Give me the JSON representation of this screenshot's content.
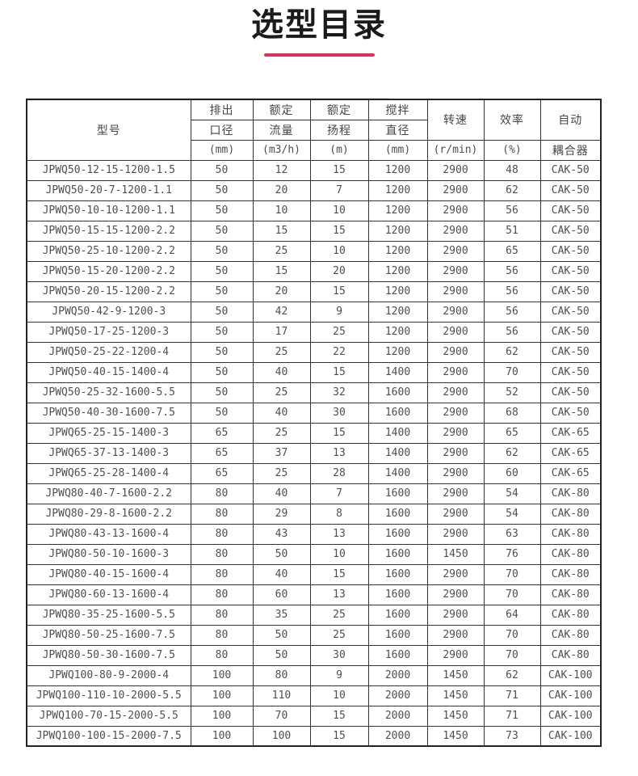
{
  "page": {
    "title": "选型目录",
    "accent_color": "#dd3257"
  },
  "table": {
    "header": {
      "model": "型号",
      "col_groups": [
        {
          "line1": "排出",
          "line2": "口径",
          "unit": "(mm)"
        },
        {
          "line1": "额定",
          "line2": "流量",
          "unit": "(m3/h)"
        },
        {
          "line1": "额定",
          "line2": "扬程",
          "unit": "(m)"
        },
        {
          "line1": "搅拌",
          "line2": "直径",
          "unit": "(mm)"
        }
      ],
      "speed": {
        "label": "转速",
        "unit": "(r/min)"
      },
      "efficiency": {
        "label": "效率",
        "unit": "(%)"
      },
      "coupler": {
        "line1": "自动",
        "line2": "耦合器"
      }
    },
    "columns_semantic": [
      "model",
      "outlet-diameter-mm",
      "rated-flow-m3h",
      "rated-head-m",
      "mixing-diameter-mm",
      "speed-rmin",
      "efficiency-pct",
      "auto-coupler"
    ],
    "rows": [
      [
        "JPWQ50-12-15-1200-1.5",
        "50",
        "12",
        "15",
        "1200",
        "2900",
        "48",
        "CAK-50"
      ],
      [
        "JPWQ50-20-7-1200-1.1",
        "50",
        "20",
        "7",
        "1200",
        "2900",
        "62",
        "CAK-50"
      ],
      [
        "JPWQ50-10-10-1200-1.1",
        "50",
        "10",
        "10",
        "1200",
        "2900",
        "56",
        "CAK-50"
      ],
      [
        "JPWQ50-15-15-1200-2.2",
        "50",
        "15",
        "15",
        "1200",
        "2900",
        "51",
        "CAK-50"
      ],
      [
        "JPWQ50-25-10-1200-2.2",
        "50",
        "25",
        "10",
        "1200",
        "2900",
        "65",
        "CAK-50"
      ],
      [
        "JPWQ50-15-20-1200-2.2",
        "50",
        "15",
        "20",
        "1200",
        "2900",
        "56",
        "CAK-50"
      ],
      [
        "JPWQ50-20-15-1200-2.2",
        "50",
        "20",
        "15",
        "1200",
        "2900",
        "56",
        "CAK-50"
      ],
      [
        "JPWQ50-42-9-1200-3",
        "50",
        "42",
        "9",
        "1200",
        "2900",
        "56",
        "CAK-50"
      ],
      [
        "JPWQ50-17-25-1200-3",
        "50",
        "17",
        "25",
        "1200",
        "2900",
        "56",
        "CAK-50"
      ],
      [
        "JPWQ50-25-22-1200-4",
        "50",
        "25",
        "22",
        "1200",
        "2900",
        "62",
        "CAK-50"
      ],
      [
        "JPWQ50-40-15-1400-4",
        "50",
        "40",
        "15",
        "1400",
        "2900",
        "70",
        "CAK-50"
      ],
      [
        "JPWQ50-25-32-1600-5.5",
        "50",
        "25",
        "32",
        "1600",
        "2900",
        "52",
        "CAK-50"
      ],
      [
        "JPWQ50-40-30-1600-7.5",
        "50",
        "40",
        "30",
        "1600",
        "2900",
        "68",
        "CAK-50"
      ],
      [
        "JPWQ65-25-15-1400-3",
        "65",
        "25",
        "15",
        "1400",
        "2900",
        "65",
        "CAK-65"
      ],
      [
        "JPWQ65-37-13-1400-3",
        "65",
        "37",
        "13",
        "1400",
        "2900",
        "62",
        "CAK-65"
      ],
      [
        "JPWQ65-25-28-1400-4",
        "65",
        "25",
        "28",
        "1400",
        "2900",
        "60",
        "CAK-65"
      ],
      [
        "JPWQ80-40-7-1600-2.2",
        "80",
        "40",
        "7",
        "1600",
        "2900",
        "54",
        "CAK-80"
      ],
      [
        "JPWQ80-29-8-1600-2.2",
        "80",
        "29",
        "8",
        "1600",
        "2900",
        "54",
        "CAK-80"
      ],
      [
        "JPWQ80-43-13-1600-4",
        "80",
        "43",
        "13",
        "1600",
        "2900",
        "63",
        "CAK-80"
      ],
      [
        "JPWQ80-50-10-1600-3",
        "80",
        "50",
        "10",
        "1600",
        "1450",
        "76",
        "CAK-80"
      ],
      [
        "JPWQ80-40-15-1600-4",
        "80",
        "40",
        "15",
        "1600",
        "2900",
        "70",
        "CAK-80"
      ],
      [
        "JPWQ80-60-13-1600-4",
        "80",
        "60",
        "13",
        "1600",
        "2900",
        "70",
        "CAK-80"
      ],
      [
        "JPWQ80-35-25-1600-5.5",
        "80",
        "35",
        "25",
        "1600",
        "2900",
        "64",
        "CAK-80"
      ],
      [
        "JPWQ80-50-25-1600-7.5",
        "80",
        "50",
        "25",
        "1600",
        "2900",
        "70",
        "CAK-80"
      ],
      [
        "JPWQ80-50-30-1600-7.5",
        "80",
        "50",
        "30",
        "1600",
        "2900",
        "70",
        "CAK-80"
      ],
      [
        "JPWQ100-80-9-2000-4",
        "100",
        "80",
        "9",
        "2000",
        "1450",
        "62",
        "CAK-100"
      ],
      [
        "JPWQ100-110-10-2000-5.5",
        "100",
        "110",
        "10",
        "2000",
        "1450",
        "71",
        "CAK-100"
      ],
      [
        "JPWQ100-70-15-2000-5.5",
        "100",
        "70",
        "15",
        "2000",
        "1450",
        "71",
        "CAK-100"
      ],
      [
        "JPWQ100-100-15-2000-7.5",
        "100",
        "100",
        "15",
        "2000",
        "1450",
        "73",
        "CAK-100"
      ]
    ]
  }
}
